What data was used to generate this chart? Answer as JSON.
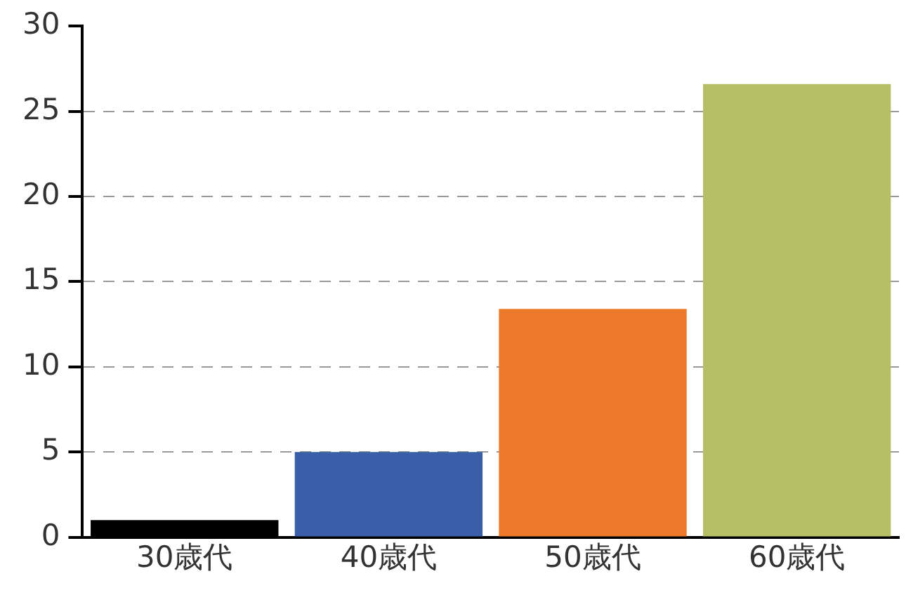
{
  "chart_data": {
    "type": "bar",
    "categories": [
      "30歳代",
      "40歳代",
      "50歳代",
      "60歳代"
    ],
    "values": [
      1,
      5,
      13.4,
      26.6
    ],
    "colors": [
      "#000000",
      "#3a5ea8",
      "#ed7a2a",
      "#b6bf66"
    ],
    "ylim": [
      0,
      30
    ],
    "yticks": [
      0,
      5,
      10,
      15,
      20,
      25,
      30
    ],
    "grid": "y",
    "legend": false
  }
}
